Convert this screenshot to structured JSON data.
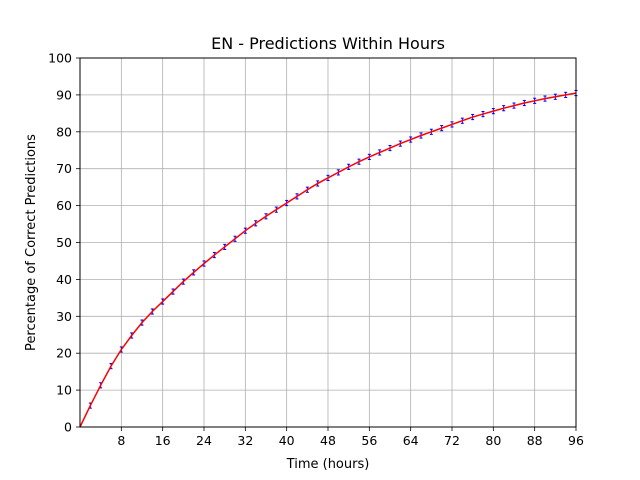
{
  "chart_data": {
    "type": "line",
    "title": "EN - Predictions Within Hours",
    "xlabel": "Time (hours)",
    "ylabel": "Percentage of Correct Predictions",
    "xlim": [
      0,
      96
    ],
    "ylim": [
      0,
      100
    ],
    "xticks": [
      8,
      16,
      24,
      32,
      40,
      48,
      56,
      64,
      72,
      80,
      88,
      96
    ],
    "xtick_labels": [
      "8",
      "16",
      "24",
      "32",
      "40",
      "48",
      "56",
      "64",
      "72",
      "80",
      "88",
      "96"
    ],
    "yticks": [
      0,
      10,
      20,
      30,
      40,
      50,
      60,
      70,
      80,
      90,
      100
    ],
    "ytick_labels": [
      "0",
      "10",
      "20",
      "30",
      "40",
      "50",
      "60",
      "70",
      "80",
      "90",
      "100"
    ],
    "grid": true,
    "line_color": "#ff0000",
    "errorbar_color": "#0000ff",
    "x": [
      0,
      2,
      4,
      6,
      8,
      10,
      12,
      14,
      16,
      18,
      20,
      22,
      24,
      26,
      28,
      30,
      32,
      34,
      36,
      38,
      40,
      42,
      44,
      46,
      48,
      50,
      52,
      54,
      56,
      58,
      60,
      62,
      64,
      66,
      68,
      70,
      72,
      74,
      76,
      78,
      80,
      82,
      84,
      86,
      88,
      90,
      92,
      94,
      96
    ],
    "y": [
      0,
      5.8,
      11.3,
      16.5,
      21.0,
      24.8,
      28.3,
      31.3,
      34.0,
      36.7,
      39.4,
      41.9,
      44.3,
      46.6,
      48.8,
      51.0,
      53.2,
      55.2,
      57.1,
      58.9,
      60.7,
      62.5,
      64.3,
      66.0,
      67.5,
      69.0,
      70.5,
      71.9,
      73.2,
      74.4,
      75.6,
      76.8,
      77.9,
      79.0,
      80.0,
      81.0,
      82.0,
      83.0,
      84.0,
      84.8,
      85.6,
      86.4,
      87.1,
      87.8,
      88.4,
      89.0,
      89.5,
      90.0,
      90.5
    ],
    "yerr": [
      0,
      0.7,
      0.7,
      0.7,
      0.7,
      0.7,
      0.7,
      0.7,
      0.7,
      0.7,
      0.7,
      0.7,
      0.7,
      0.7,
      0.7,
      0.7,
      0.7,
      0.7,
      0.7,
      0.7,
      0.7,
      0.7,
      0.7,
      0.7,
      0.7,
      0.7,
      0.7,
      0.7,
      0.7,
      0.7,
      0.7,
      0.7,
      0.7,
      0.7,
      0.7,
      0.7,
      0.7,
      0.7,
      0.7,
      0.7,
      0.7,
      0.7,
      0.7,
      0.7,
      0.7,
      0.7,
      0.7,
      0.7,
      0.7
    ]
  }
}
